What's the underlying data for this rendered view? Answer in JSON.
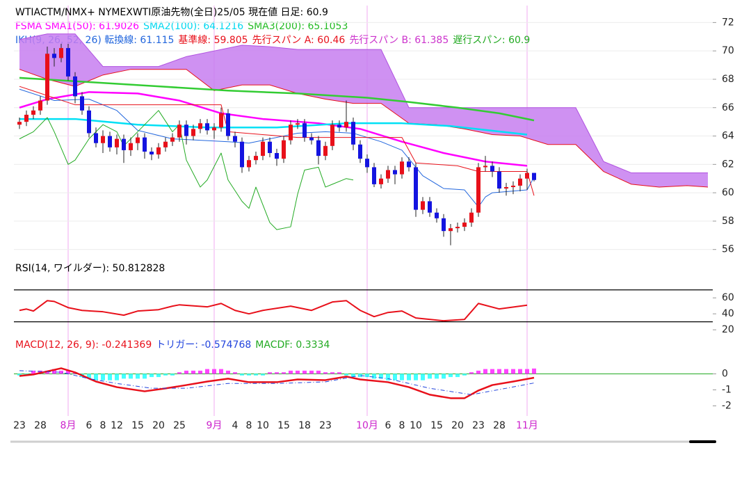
{
  "chart_data": [
    {
      "type": "candlestick",
      "title": "WTIACTM/NMX+ NYMEXWTI原油先物(全日)25/05 現在値 日足: 60.9",
      "legend_rows": [
        [
          {
            "text": "FSMA SMA1(50): 61.9026",
            "color": "#ff00ff"
          },
          {
            "text": "SMA2(100): 64.1216",
            "color": "#00d8f0"
          },
          {
            "text": "SMA3(200): 65.1053",
            "color": "#22bb22"
          }
        ],
        [
          {
            "text": "IKH(9, 26, 52, 26) 転換線: 61.115",
            "color": "#2266dd"
          },
          {
            "text": "基準線: 59.805",
            "color": "#e8101a"
          },
          {
            "text": "先行スパン A: 60.46",
            "color": "#e8101a"
          },
          {
            "text": "先行スパン B: 61.385",
            "color": "#cc33cc"
          },
          {
            "text": "遅行スパン: 60.9",
            "color": "#22aa22"
          }
        ]
      ],
      "categories": [
        "23",
        null,
        null,
        "28",
        null,
        null,
        null,
        "8月",
        null,
        null,
        "6",
        null,
        "8",
        null,
        "12",
        null,
        null,
        "15",
        null,
        null,
        "20",
        null,
        null,
        "25",
        null,
        null,
        null,
        null,
        "9月",
        null,
        null,
        "4",
        null,
        "8",
        null,
        "10",
        null,
        null,
        "15",
        null,
        null,
        "18",
        null,
        null,
        "23",
        null,
        null,
        null,
        null,
        null,
        "10月",
        null,
        null,
        "6",
        null,
        "8",
        null,
        "10",
        null,
        null,
        "15",
        null,
        null,
        "20",
        null,
        null,
        "23",
        null,
        null,
        "28",
        null,
        null,
        null,
        "11月",
        null
      ],
      "open": [
        64.8,
        65.0,
        65.5,
        65.8,
        66.5,
        69.8,
        69.5,
        70.2,
        68.2,
        66.8,
        65.8,
        64.2,
        63.5,
        64.0,
        63.2,
        63.8,
        63.0,
        63.5,
        63.9,
        62.9,
        62.7,
        63.2,
        63.6,
        63.9,
        64.8,
        64.0,
        64.5,
        64.9,
        64.4,
        64.6,
        65.6,
        64.0,
        63.6,
        61.8,
        62.3,
        62.6,
        63.6,
        62.8,
        62.4,
        63.7,
        64.8,
        64.9,
        63.9,
        63.7,
        62.6,
        63.3,
        64.8,
        64.6,
        65.0,
        63.4,
        62.4,
        61.8,
        60.6,
        61.0,
        61.6,
        61.3,
        62.2,
        61.8,
        58.8,
        59.4,
        58.6,
        58.2,
        57.3,
        57.5,
        57.6,
        57.9,
        58.6,
        61.8,
        61.9,
        61.5,
        60.3,
        60.4,
        60.5,
        61.0,
        61.4
      ],
      "high": [
        65.3,
        65.8,
        66.1,
        66.8,
        70.3,
        70.2,
        70.5,
        70.5,
        68.5,
        67.1,
        66.1,
        64.6,
        64.4,
        64.3,
        64.1,
        64.1,
        63.9,
        64.2,
        64.2,
        63.2,
        63.5,
        63.9,
        64.2,
        65.1,
        65.1,
        64.8,
        65.2,
        65.2,
        64.9,
        66.0,
        65.9,
        64.3,
        63.9,
        62.6,
        62.9,
        63.9,
        63.9,
        63.1,
        64.0,
        65.1,
        65.2,
        65.2,
        64.2,
        64.0,
        63.6,
        65.1,
        65.1,
        66.5,
        65.3,
        63.7,
        62.7,
        62.1,
        61.3,
        61.9,
        61.9,
        62.5,
        62.5,
        62.1,
        59.7,
        59.7,
        58.9,
        58.5,
        57.8,
        57.9,
        58.2,
        58.9,
        62.1,
        62.6,
        62.2,
        61.8,
        60.7,
        60.8,
        61.3,
        61.7,
        61.4
      ],
      "low": [
        64.5,
        64.7,
        65.2,
        65.5,
        66.2,
        68.9,
        69.2,
        67.9,
        66.3,
        65.5,
        63.9,
        63.2,
        62.8,
        62.9,
        62.7,
        62.1,
        62.6,
        63.0,
        62.4,
        62.3,
        62.4,
        62.9,
        63.3,
        63.6,
        63.4,
        63.7,
        64.2,
        64.1,
        63.8,
        64.3,
        63.7,
        63.2,
        61.4,
        61.5,
        62.0,
        62.3,
        62.5,
        61.9,
        62.1,
        63.4,
        64.5,
        63.6,
        63.4,
        62.0,
        62.3,
        63.0,
        64.3,
        64.3,
        63.0,
        62.1,
        61.4,
        60.4,
        60.3,
        60.7,
        60.6,
        61.0,
        61.5,
        58.3,
        58.5,
        58.3,
        57.9,
        56.9,
        56.3,
        57.2,
        57.3,
        57.6,
        58.3,
        61.5,
        61.1,
        60.0,
        59.8,
        59.9,
        60.1,
        60.2,
        60.8
      ],
      "close": [
        65.0,
        65.5,
        65.8,
        66.5,
        69.8,
        69.5,
        70.2,
        68.2,
        66.8,
        65.8,
        64.2,
        63.5,
        64.0,
        63.2,
        63.8,
        63.0,
        63.5,
        63.9,
        62.9,
        62.7,
        63.2,
        63.6,
        63.9,
        64.8,
        64.0,
        64.5,
        64.9,
        64.4,
        64.6,
        65.6,
        64.0,
        63.6,
        61.8,
        62.3,
        62.6,
        63.6,
        62.8,
        62.4,
        63.7,
        64.8,
        64.9,
        63.9,
        63.7,
        62.6,
        63.3,
        64.8,
        64.6,
        65.0,
        63.4,
        62.4,
        61.8,
        60.6,
        61.0,
        61.6,
        61.3,
        62.2,
        61.8,
        58.8,
        59.4,
        58.6,
        58.2,
        57.3,
        57.5,
        57.6,
        57.9,
        58.6,
        61.8,
        61.9,
        61.5,
        60.3,
        60.4,
        60.5,
        61.0,
        61.4,
        60.9
      ],
      "up_color": "#e8101a",
      "down_color": "#1414e0",
      "xlim": [
        -0.8,
        99.7
      ],
      "ylim": [
        55.2,
        73
      ],
      "yticks": [
        56,
        58,
        60,
        62,
        64,
        66,
        68,
        70,
        72
      ],
      "grid": true,
      "cloud": {
        "color": "#c77ef0",
        "edge_a": "#b050e0",
        "edge_b": "#e8101a",
        "x": [
          0,
          4,
          8,
          12,
          16,
          20,
          24,
          28,
          32,
          36,
          40,
          44,
          48,
          52,
          56,
          60,
          64,
          68,
          72,
          76,
          80,
          84,
          88,
          92,
          96,
          99
        ],
        "span_a": [
          70.8,
          71.2,
          71.2,
          68.9,
          68.9,
          68.9,
          69.6,
          70.0,
          70.4,
          70.3,
          70.1,
          70.1,
          70.1,
          70.1,
          66.0,
          66.0,
          66.0,
          66.0,
          66.0,
          66.0,
          66.0,
          62.2,
          61.4,
          61.4,
          61.4,
          61.4
        ],
        "span_b": [
          68.7,
          68.0,
          67.5,
          68.3,
          68.7,
          68.7,
          68.7,
          67.2,
          67.6,
          67.6,
          67.0,
          66.6,
          66.3,
          66.3,
          64.9,
          64.8,
          64.5,
          64.1,
          64.0,
          63.4,
          63.4,
          61.5,
          60.6,
          60.4,
          60.5,
          60.4
        ]
      },
      "series": [
        {
          "color": "#ff00ff",
          "width": 2.5,
          "x": [
            0,
            4,
            10,
            17,
            23,
            29,
            35,
            43,
            49,
            55,
            61,
            67,
            73
          ],
          "values": [
            66.0,
            66.6,
            67.1,
            67.0,
            66.5,
            65.6,
            65.2,
            64.9,
            64.5,
            63.6,
            62.8,
            62.2,
            61.9
          ]
        },
        {
          "color": "#00e0f5",
          "width": 2.5,
          "x": [
            0,
            8,
            17,
            27,
            37,
            47,
            55,
            62,
            73
          ],
          "values": [
            65.2,
            65.2,
            64.8,
            64.6,
            64.6,
            64.9,
            64.9,
            64.7,
            64.1
          ]
        },
        {
          "color": "#33cc33",
          "width": 2.5,
          "x": [
            0,
            10,
            20,
            30,
            40,
            50,
            56,
            63,
            69,
            74
          ],
          "values": [
            68.1,
            67.8,
            67.5,
            67.2,
            67.0,
            66.7,
            66.4,
            66.0,
            65.6,
            65.1
          ]
        },
        {
          "color": "#2266dd",
          "width": 1,
          "x": [
            0,
            5,
            10,
            14,
            17,
            22,
            30,
            33,
            40,
            44,
            48,
            52,
            55,
            58,
            61,
            64,
            66,
            67,
            68,
            73,
            74
          ],
          "values": [
            67.3,
            66.5,
            66.6,
            65.8,
            64.4,
            63.8,
            63.6,
            63.5,
            64.2,
            64.3,
            64.2,
            63.6,
            63.0,
            61.2,
            60.3,
            60.2,
            59.0,
            59.7,
            60.0,
            60.2,
            61.1
          ]
        },
        {
          "color": "#e8101a",
          "width": 1,
          "x": [
            0,
            8,
            29,
            30,
            40,
            55,
            57,
            63,
            66,
            73,
            74
          ],
          "values": [
            67.5,
            66.2,
            66.2,
            64.3,
            63.9,
            63.9,
            62.1,
            61.9,
            61.5,
            61.5,
            59.8
          ]
        },
        {
          "color": "#22aa22",
          "width": 1,
          "x": [
            0,
            2,
            4,
            5,
            7,
            8,
            10,
            12,
            14,
            15,
            20,
            22,
            23,
            24,
            26,
            27,
            29,
            30,
            32,
            33,
            34,
            36,
            37,
            39,
            40,
            41,
            43,
            44,
            45,
            47,
            48
          ],
          "values": [
            63.8,
            64.3,
            65.3,
            64.3,
            62.0,
            62.3,
            63.8,
            64.8,
            64.3,
            63.3,
            65.8,
            64.3,
            64.8,
            62.3,
            60.4,
            60.9,
            62.8,
            60.9,
            59.4,
            58.9,
            60.4,
            57.9,
            57.4,
            57.6,
            59.9,
            61.6,
            61.8,
            60.4,
            60.6,
            61.0,
            60.9
          ]
        }
      ]
    },
    {
      "type": "line",
      "title": "RSI(14, ワイルダー): 50.812828",
      "xlim": [
        -0.8,
        99.7
      ],
      "ylim": [
        14,
        75
      ],
      "yticks": [
        20,
        40,
        60
      ],
      "levels": [
        70,
        30
      ],
      "series": [
        {
          "color": "#e8101a",
          "width": 2,
          "x": [
            0,
            1,
            2,
            4,
            5,
            7,
            9,
            12,
            15,
            17,
            20,
            22,
            23,
            27,
            29,
            31,
            33,
            35,
            39,
            42,
            45,
            47,
            49,
            51,
            53,
            55,
            57,
            61,
            64,
            66,
            69,
            73
          ],
          "values": [
            44.3,
            46.0,
            43.5,
            56.5,
            55.5,
            47.8,
            44.3,
            42.6,
            38.3,
            43.5,
            45.2,
            49.6,
            51.3,
            48.7,
            53.0,
            44.3,
            40.0,
            44.3,
            49.6,
            44.3,
            54.8,
            56.5,
            44.3,
            36.5,
            41.7,
            43.5,
            34.8,
            31.3,
            33.0,
            53.0,
            46.1,
            50.8
          ]
        }
      ]
    },
    {
      "type": "line",
      "legend_rows": [
        [
          {
            "text": "MACD(12, 26, 9): -0.241369",
            "color": "#e8101a"
          },
          {
            "text": "トリガー: -0.574768",
            "color": "#2244dd"
          },
          {
            "text": "MACDF: 0.3334",
            "color": "#22aa22"
          }
        ]
      ],
      "xlim": [
        -0.8,
        99.7
      ],
      "ylim": [
        -2.5,
        2.28
      ],
      "yticks": [
        -2,
        -1,
        0
      ],
      "zero_line": true,
      "histogram": {
        "up_color": "#ff44ff",
        "down_color": "#44ffff",
        "values": [
          -0.1,
          -0.1,
          0.2,
          0.2,
          0.2,
          0.3,
          0.2,
          0.2,
          0.1,
          -0.2,
          -0.3,
          -0.4,
          -0.4,
          -0.4,
          -0.4,
          -0.3,
          -0.3,
          -0.3,
          -0.3,
          -0.2,
          -0.2,
          -0.1,
          -0.1,
          0.1,
          0.2,
          0.2,
          0.2,
          0.3,
          0.3,
          0.3,
          0.2,
          0.1,
          -0.1,
          -0.1,
          -0.1,
          -0.1,
          0.1,
          0.1,
          0.1,
          0.2,
          0.2,
          0.2,
          0.2,
          0.2,
          0.1,
          0.1,
          0.1,
          -0.1,
          -0.2,
          -0.2,
          -0.2,
          -0.3,
          -0.3,
          -0.4,
          -0.4,
          -0.4,
          -0.4,
          -0.4,
          -0.4,
          -0.3,
          -0.3,
          -0.3,
          -0.2,
          -0.2,
          -0.1,
          0.1,
          0.2,
          0.3,
          0.3,
          0.3,
          0.3,
          0.3,
          0.3,
          0.3,
          0.3334
        ]
      },
      "series": [
        {
          "color": "#e8101a",
          "width": 2.5,
          "x": [
            0,
            2,
            6,
            8,
            11,
            14,
            18,
            21,
            24,
            27,
            30,
            33,
            37,
            40,
            44,
            47,
            49,
            53,
            56,
            59,
            62,
            64,
            66,
            68,
            71,
            74
          ],
          "values": [
            -0.13,
            -0.04,
            0.35,
            0.09,
            -0.48,
            -0.83,
            -1.09,
            -0.91,
            -0.7,
            -0.48,
            -0.3,
            -0.52,
            -0.52,
            -0.35,
            -0.39,
            -0.17,
            -0.35,
            -0.52,
            -0.83,
            -1.3,
            -1.52,
            -1.52,
            -1.04,
            -0.7,
            -0.48,
            -0.24
          ]
        },
        {
          "color": "#2244dd",
          "width": 1,
          "dash": true,
          "x": [
            0,
            6,
            10,
            14,
            19,
            24,
            30,
            37,
            44,
            49,
            53,
            59,
            65,
            70,
            74
          ],
          "values": [
            0.2,
            0.1,
            -0.3,
            -0.6,
            -0.9,
            -0.9,
            -0.6,
            -0.6,
            -0.5,
            -0.1,
            -0.3,
            -0.9,
            -1.3,
            -0.9,
            -0.57
          ]
        }
      ]
    }
  ]
}
